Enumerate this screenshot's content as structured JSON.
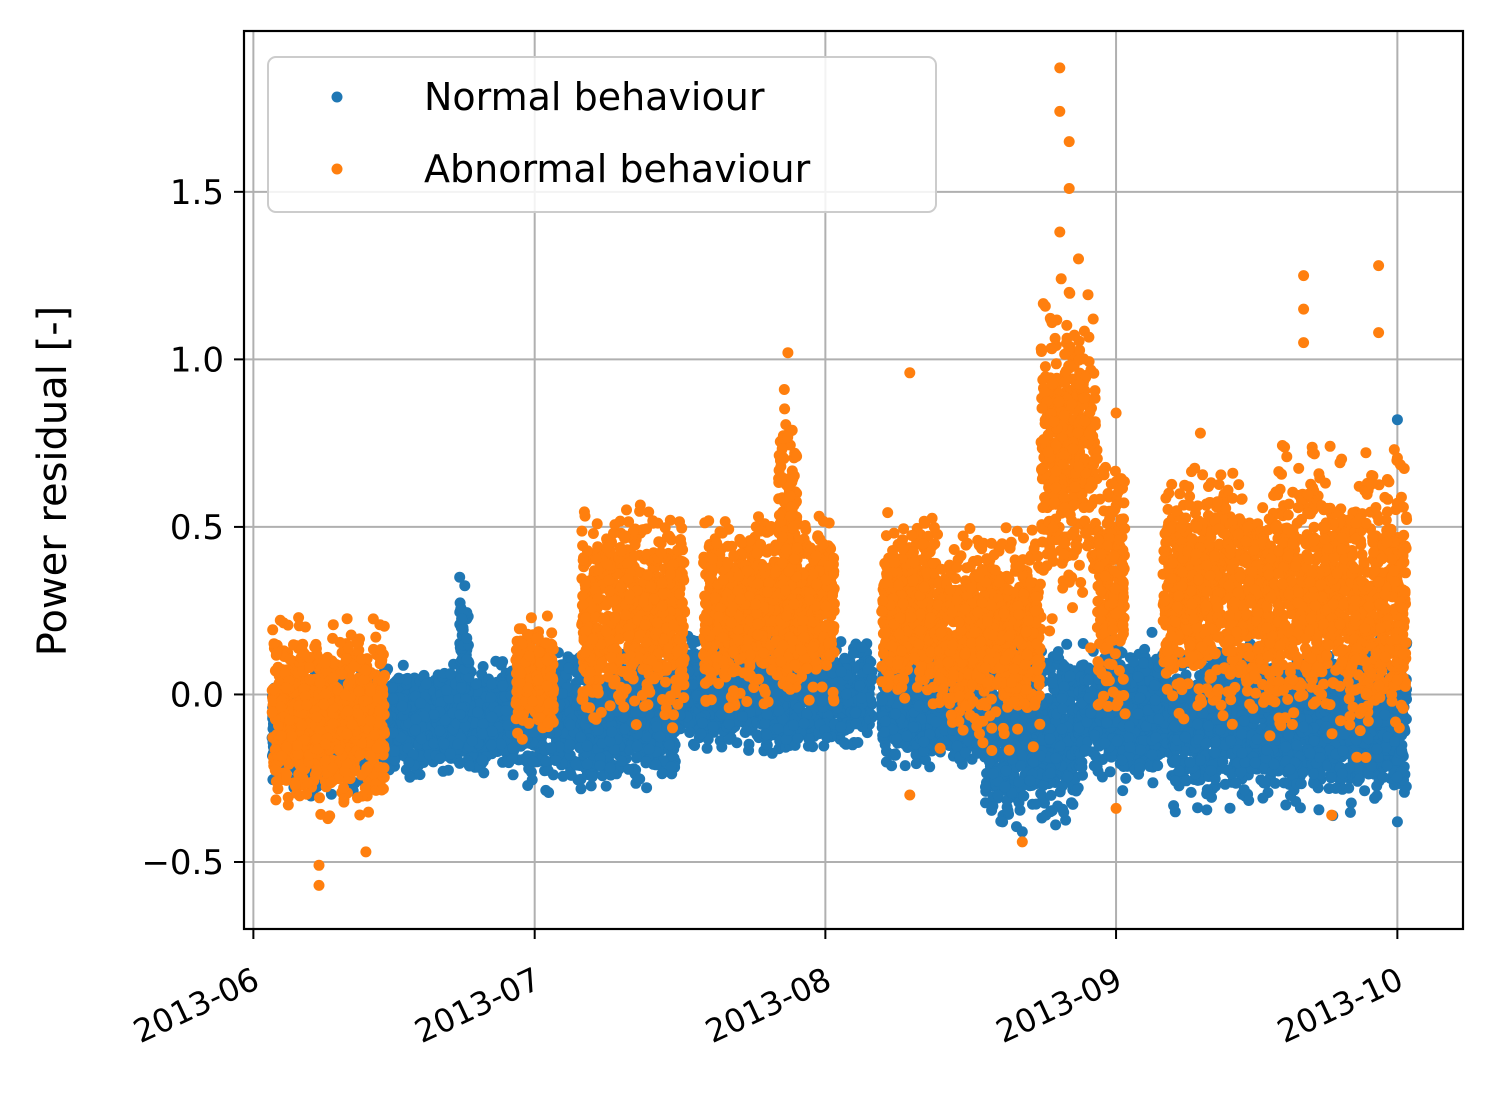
{
  "chart_data": {
    "type": "scatter",
    "title": "",
    "xlabel": "",
    "ylabel": "Power residual [-]",
    "x_type": "date",
    "xlim": [
      "2013-05-31",
      "2013-10-08"
    ],
    "ylim": [
      -0.7,
      1.98
    ],
    "grid": true,
    "legend_position": "top-left",
    "x_ticks": [
      "2013-06-01",
      "2013-07-01",
      "2013-08-01",
      "2013-09-01",
      "2013-10-01"
    ],
    "x_tick_labels": [
      "2013-06",
      "2013-07",
      "2013-08",
      "2013-09",
      "2013-10"
    ],
    "y_ticks": [
      -0.5,
      0.0,
      0.5,
      1.0,
      1.5
    ],
    "y_tick_labels": [
      "−0.5",
      "0.0",
      "0.5",
      "1.0",
      "1.5"
    ],
    "colors": {
      "normal": "#1f77b4",
      "abnormal": "#ff7f0e"
    },
    "series": [
      {
        "name": "Normal behaviour",
        "color": "#1f77b4",
        "clusters": [
          {
            "start": "2013-06-03",
            "end": "2013-06-15",
            "low": -0.32,
            "high": 0.1
          },
          {
            "start": "2013-06-15",
            "end": "2013-06-30",
            "low": -0.27,
            "high": 0.12
          },
          {
            "start": "2013-06-23",
            "end": "2013-06-24",
            "low": -0.1,
            "high": 0.35
          },
          {
            "start": "2013-06-30",
            "end": "2013-07-16",
            "low": -0.32,
            "high": 0.18
          },
          {
            "start": "2013-07-16",
            "end": "2013-08-06",
            "low": -0.2,
            "high": 0.2
          },
          {
            "start": "2013-08-07",
            "end": "2013-08-18",
            "low": -0.25,
            "high": 0.18
          },
          {
            "start": "2013-08-18",
            "end": "2013-08-28",
            "low": -0.45,
            "high": 0.2
          },
          {
            "start": "2013-08-28",
            "end": "2013-09-07",
            "low": -0.3,
            "high": 0.2
          },
          {
            "start": "2013-09-07",
            "end": "2013-10-02",
            "low": -0.38,
            "high": 0.2
          }
        ],
        "points": [
          {
            "x": "2013-08-22",
            "y": -0.41
          },
          {
            "x": "2013-08-25",
            "y": -0.35
          },
          {
            "x": "2013-10-01",
            "y": 0.82
          },
          {
            "x": "2013-10-01",
            "y": -0.38
          },
          {
            "x": "2013-06-23",
            "y": 0.35
          }
        ]
      },
      {
        "name": "Abnormal behaviour",
        "color": "#ff7f0e",
        "clusters": [
          {
            "start": "2013-06-03",
            "end": "2013-06-15",
            "low": -0.42,
            "high": 0.28
          },
          {
            "start": "2013-06-29",
            "end": "2013-07-03",
            "low": -0.15,
            "high": 0.25
          },
          {
            "start": "2013-07-06",
            "end": "2013-07-17",
            "low": -0.15,
            "high": 0.63
          },
          {
            "start": "2013-07-19",
            "end": "2013-08-02",
            "low": -0.1,
            "high": 0.6
          },
          {
            "start": "2013-07-27",
            "end": "2013-07-29",
            "low": 0.0,
            "high": 1.02
          },
          {
            "start": "2013-08-07",
            "end": "2013-08-13",
            "low": -0.1,
            "high": 0.6
          },
          {
            "start": "2013-08-13",
            "end": "2013-08-24",
            "low": -0.2,
            "high": 0.55
          },
          {
            "start": "2013-08-24",
            "end": "2013-08-30",
            "low": 0.1,
            "high": 1.3
          },
          {
            "start": "2013-08-30",
            "end": "2013-09-02",
            "low": -0.15,
            "high": 0.8
          },
          {
            "start": "2013-09-06",
            "end": "2013-09-17",
            "low": -0.15,
            "high": 0.75
          },
          {
            "start": "2013-09-17",
            "end": "2013-09-26",
            "low": -0.2,
            "high": 0.8
          },
          {
            "start": "2013-09-26",
            "end": "2013-10-02",
            "low": -0.25,
            "high": 0.8
          }
        ],
        "points": [
          {
            "x": "2013-06-08",
            "y": -0.57
          },
          {
            "x": "2013-06-08",
            "y": -0.51
          },
          {
            "x": "2013-06-13",
            "y": -0.47
          },
          {
            "x": "2013-07-28",
            "y": 1.02
          },
          {
            "x": "2013-08-10",
            "y": 0.96
          },
          {
            "x": "2013-08-10",
            "y": -0.3
          },
          {
            "x": "2013-08-22",
            "y": -0.44
          },
          {
            "x": "2013-08-26",
            "y": 1.87
          },
          {
            "x": "2013-08-26",
            "y": 1.74
          },
          {
            "x": "2013-08-27",
            "y": 1.65
          },
          {
            "x": "2013-08-27",
            "y": 1.51
          },
          {
            "x": "2013-08-26",
            "y": 1.38
          },
          {
            "x": "2013-08-28",
            "y": 1.3
          },
          {
            "x": "2013-08-27",
            "y": 1.2
          },
          {
            "x": "2013-09-01",
            "y": 0.84
          },
          {
            "x": "2013-09-01",
            "y": -0.34
          },
          {
            "x": "2013-09-10",
            "y": 0.78
          },
          {
            "x": "2013-09-21",
            "y": 1.25
          },
          {
            "x": "2013-09-21",
            "y": 1.15
          },
          {
            "x": "2013-09-21",
            "y": 1.05
          },
          {
            "x": "2013-09-29",
            "y": 1.28
          },
          {
            "x": "2013-09-29",
            "y": 1.08
          },
          {
            "x": "2013-09-24",
            "y": -0.36
          }
        ]
      }
    ]
  }
}
